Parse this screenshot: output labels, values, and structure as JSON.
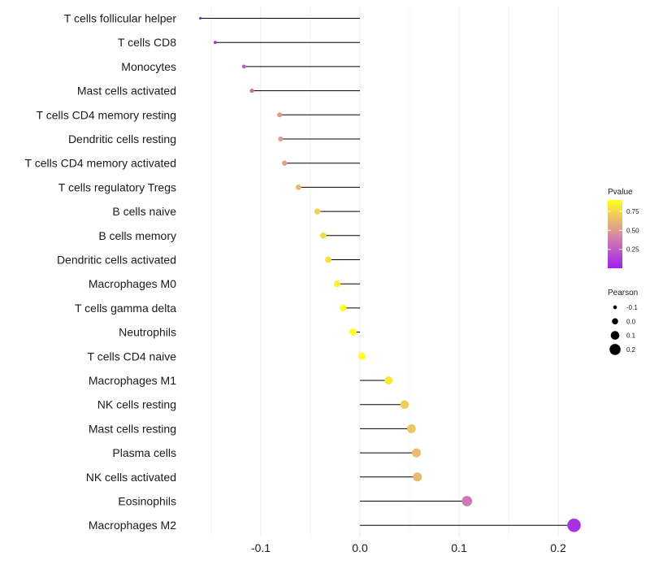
{
  "chart_data": {
    "type": "lollipop",
    "title": "",
    "xlabel": "",
    "ylabel": "",
    "xlim": [
      -0.17,
      0.225
    ],
    "xticks": [
      -0.1,
      0.0,
      0.1,
      0.2
    ],
    "xtick_labels": [
      "-0.1",
      "0.0",
      "0.1",
      "0.2"
    ],
    "grid": true,
    "baseline": 0.0,
    "points": [
      {
        "label": "T cells follicular helper",
        "pearson": -0.161,
        "pvalue": 0.02
      },
      {
        "label": "T cells CD8",
        "pearson": -0.146,
        "pvalue": 0.08
      },
      {
        "label": "Monocytes",
        "pearson": -0.117,
        "pvalue": 0.27
      },
      {
        "label": "Mast cells activated",
        "pearson": -0.109,
        "pvalue": 0.33
      },
      {
        "label": "T cells CD4 memory resting",
        "pearson": -0.081,
        "pvalue": 0.5
      },
      {
        "label": "Dendritic cells resting",
        "pearson": -0.08,
        "pvalue": 0.51
      },
      {
        "label": "T cells CD4 memory activated",
        "pearson": -0.076,
        "pvalue": 0.53
      },
      {
        "label": "T cells regulatory  Tregs ",
        "pearson": -0.062,
        "pvalue": 0.62
      },
      {
        "label": "B cells naive",
        "pearson": -0.043,
        "pvalue": 0.72
      },
      {
        "label": "B cells memory",
        "pearson": -0.037,
        "pvalue": 0.76
      },
      {
        "label": "Dendritic cells activated",
        "pearson": -0.032,
        "pvalue": 0.79
      },
      {
        "label": "Macrophages M0",
        "pearson": -0.023,
        "pvalue": 0.85
      },
      {
        "label": "T cells gamma delta",
        "pearson": -0.017,
        "pvalue": 0.89
      },
      {
        "label": "Neutrophils",
        "pearson": -0.007,
        "pvalue": 0.95
      },
      {
        "label": "T cells CD4 naive",
        "pearson": 0.002,
        "pvalue": 0.99
      },
      {
        "label": "Macrophages M1",
        "pearson": 0.029,
        "pvalue": 0.81
      },
      {
        "label": "NK cells resting",
        "pearson": 0.045,
        "pvalue": 0.71
      },
      {
        "label": "Mast cells resting",
        "pearson": 0.052,
        "pvalue": 0.67
      },
      {
        "label": "Plasma cells",
        "pearson": 0.057,
        "pvalue": 0.64
      },
      {
        "label": "NK cells activated",
        "pearson": 0.058,
        "pvalue": 0.63
      },
      {
        "label": "Eosinophils",
        "pearson": 0.108,
        "pvalue": 0.37
      },
      {
        "label": "Macrophages M2",
        "pearson": 0.216,
        "pvalue": 0.07
      }
    ],
    "legend_color": {
      "title": "Pvalue",
      "ticks": [
        0.25,
        0.5,
        0.75
      ],
      "tick_labels": [
        "0.25",
        "0.50",
        "0.75"
      ],
      "range": [
        0.0,
        0.9
      ],
      "low_color": "#a020f0",
      "mid_color": "#d98ca0",
      "high_color": "#ffff20"
    },
    "legend_size": {
      "title": "Pearson",
      "values": [
        -0.1,
        0.0,
        0.1,
        0.2
      ],
      "labels": [
        "-0.1",
        "0.0",
        "0.1",
        "0.2"
      ]
    },
    "colors": {
      "line": "#000000",
      "grid": "#ebebeb",
      "text": "#1a1a1a"
    }
  }
}
